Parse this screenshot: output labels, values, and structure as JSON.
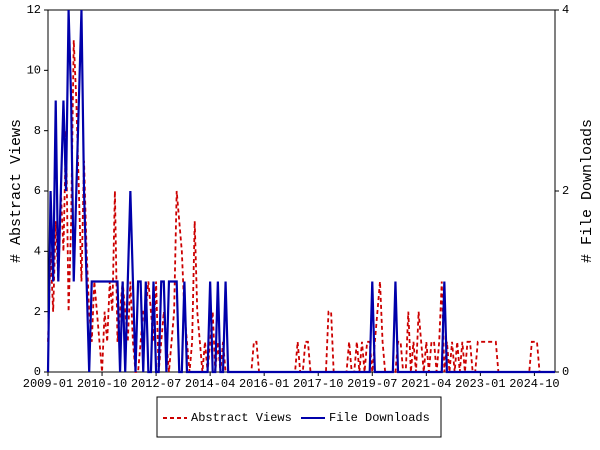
{
  "chart_data": {
    "type": "line",
    "y_label": "# Abstract Views",
    "y2_label": "# File Downloads",
    "categories": [
      "2009-01",
      null,
      null,
      null,
      null,
      null,
      null,
      null,
      null,
      null,
      null,
      null,
      null,
      null,
      null,
      null,
      null,
      null,
      null,
      null,
      null,
      "2010-10",
      null,
      null,
      null,
      null,
      null,
      null,
      null,
      null,
      null,
      null,
      null,
      null,
      null,
      null,
      null,
      null,
      null,
      null,
      null,
      null,
      "2012-07",
      null,
      null,
      null,
      null,
      null,
      null,
      null,
      null,
      null,
      null,
      null,
      null,
      null,
      null,
      null,
      null,
      null,
      null,
      null,
      null,
      "2014-04",
      null,
      null,
      null,
      null,
      null,
      null,
      null,
      null,
      null,
      null,
      null,
      null,
      null,
      null,
      null,
      null,
      null,
      null,
      null,
      null,
      "2016-01",
      null,
      null,
      null,
      null,
      null,
      null,
      null,
      null,
      null,
      null,
      null,
      null,
      null,
      null,
      null,
      null,
      null,
      null,
      null,
      null,
      "2017-10",
      null,
      null,
      null,
      null,
      null,
      null,
      null,
      null,
      null,
      null,
      null,
      null,
      null,
      null,
      null,
      null,
      null,
      null,
      null,
      null,
      "2019-07",
      null,
      null,
      null,
      null,
      null,
      null,
      null,
      null,
      null,
      null,
      null,
      null,
      null,
      null,
      null,
      null,
      null,
      null,
      null,
      null,
      "2021-04",
      null,
      null,
      null,
      null,
      null,
      null,
      null,
      null,
      null,
      null,
      null,
      null,
      null,
      null,
      null,
      null,
      null,
      null,
      null,
      null,
      "2023-01",
      null,
      null,
      null,
      null,
      null,
      null,
      null,
      null,
      null,
      null,
      null,
      null,
      null,
      null,
      null,
      null,
      null,
      null,
      null,
      null,
      "2024-10",
      null,
      null,
      null,
      null,
      null,
      null,
      null,
      null
    ],
    "series": [
      {
        "name": "Abstract Views",
        "color": "#cc0000",
        "dashed": true,
        "axis": "y",
        "values": [
          1,
          4,
          2,
          5,
          3,
          6,
          4,
          8,
          2,
          5,
          11,
          9,
          6,
          3,
          7,
          4,
          2,
          1,
          3,
          2,
          1,
          0,
          2,
          1,
          3,
          2,
          6,
          1,
          2,
          3,
          2,
          1,
          3,
          1,
          0,
          0,
          1,
          2,
          2,
          3,
          2,
          1,
          3,
          0,
          1,
          2,
          1,
          0,
          1,
          2,
          6,
          5,
          4,
          2,
          1,
          0,
          1,
          5,
          2,
          1,
          0,
          1,
          0,
          1,
          2,
          0,
          1,
          0,
          1,
          0,
          0,
          0,
          0,
          0,
          0,
          0,
          0,
          0,
          0,
          0,
          1,
          1,
          0,
          0,
          0,
          0,
          0,
          0,
          0,
          0,
          0,
          0,
          0,
          0,
          0,
          0,
          0,
          1,
          0,
          0,
          1,
          1,
          0,
          0,
          0,
          0,
          0,
          0,
          0,
          2,
          2,
          0,
          0,
          0,
          0,
          0,
          0,
          1,
          0,
          0,
          1,
          0,
          1,
          0,
          1,
          1,
          0,
          1,
          2,
          3,
          1,
          0,
          0,
          0,
          0,
          0,
          1,
          1,
          0,
          0,
          2,
          0,
          1,
          0,
          2,
          1,
          0,
          1,
          0,
          1,
          1,
          0,
          1,
          3,
          0,
          1,
          0,
          1,
          0,
          1,
          0,
          1,
          0,
          1,
          1,
          0,
          0,
          1,
          1,
          1,
          1,
          1,
          1,
          1,
          1,
          0,
          0,
          0,
          0,
          0,
          0,
          0,
          0,
          0,
          0,
          0,
          0,
          0,
          1,
          1,
          1,
          0,
          0,
          0,
          0,
          0,
          0,
          0
        ]
      },
      {
        "name": "File Downloads",
        "color": "#0000aa",
        "dashed": false,
        "axis": "y2",
        "values": [
          0,
          2,
          1,
          3,
          1,
          2,
          3,
          2,
          4,
          3,
          1,
          2,
          3,
          4,
          2,
          1,
          0,
          1,
          1,
          1,
          1,
          1,
          1,
          1,
          1,
          1,
          1,
          1,
          0,
          1,
          0,
          1,
          2,
          1,
          0,
          1,
          1,
          0,
          1,
          0,
          0,
          1,
          0,
          0,
          1,
          1,
          0,
          1,
          1,
          1,
          1,
          0,
          0,
          1,
          0,
          0,
          0,
          0,
          0,
          0,
          0,
          0,
          0,
          1,
          0,
          0,
          1,
          0,
          0,
          1,
          0,
          0,
          0,
          0,
          0,
          0,
          0,
          0,
          0,
          0,
          0,
          0,
          0,
          0,
          0,
          0,
          0,
          0,
          0,
          0,
          0,
          0,
          0,
          0,
          0,
          0,
          0,
          0,
          0,
          0,
          0,
          0,
          0,
          0,
          0,
          0,
          0,
          0,
          0,
          0,
          0,
          0,
          0,
          0,
          0,
          0,
          0,
          0,
          0,
          0,
          0,
          0,
          0,
          0,
          0,
          0,
          1,
          0,
          0,
          0,
          0,
          0,
          0,
          0,
          0,
          1,
          0,
          0,
          0,
          0,
          0,
          0,
          0,
          0,
          0,
          0,
          0,
          0,
          0,
          0,
          0,
          0,
          0,
          0,
          1,
          0,
          0,
          0,
          0,
          0,
          0,
          0,
          0,
          0,
          0,
          0,
          0,
          0,
          0,
          0,
          0,
          0,
          0,
          0,
          0,
          0,
          0,
          0,
          0,
          0,
          0,
          0,
          0,
          0,
          0,
          0,
          0,
          0,
          0,
          0,
          0,
          0,
          0,
          0,
          0,
          0,
          0,
          0
        ]
      }
    ],
    "ylim": [
      0,
      12
    ],
    "yticks": [
      0,
      2,
      4,
      6,
      8,
      10,
      12
    ],
    "y2lim": [
      0,
      4
    ],
    "y2ticks": [
      0,
      2,
      4
    ],
    "grid": false,
    "legend": "bottom"
  }
}
